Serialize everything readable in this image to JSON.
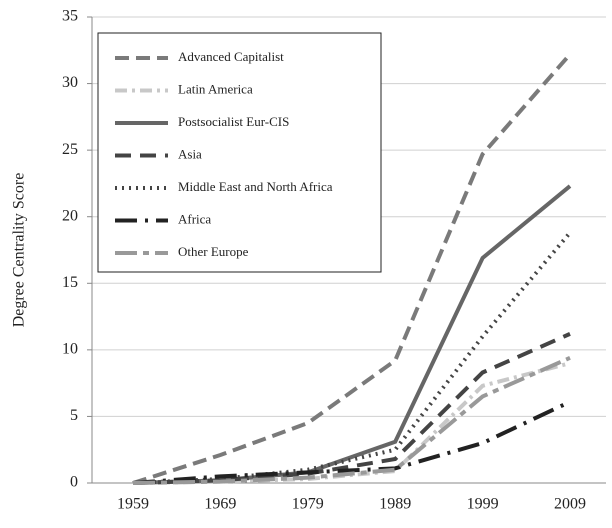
{
  "chart_data": {
    "type": "line",
    "y_label": "Degree Centrality Score",
    "categories": [
      "1959",
      "1969",
      "1979",
      "1989",
      "1999",
      "2009"
    ],
    "ylim": [
      0,
      35
    ],
    "yticks": [
      0,
      5,
      10,
      15,
      20,
      25,
      30,
      35
    ],
    "grid": true,
    "series": [
      {
        "name": "Advanced Capitalist",
        "color": "#7a7a7a",
        "dash": "14 7",
        "values": [
          0,
          2.1,
          4.5,
          9.2,
          24.7,
          32.2
        ]
      },
      {
        "name": "Latin America",
        "color": "#c8c8c8",
        "dash": "12 5 3 5",
        "values": [
          0,
          0.1,
          0.3,
          0.9,
          7.3,
          9.0
        ]
      },
      {
        "name": "Postsocialist Eur-CIS",
        "color": "#666666",
        "dash": "",
        "values": [
          0,
          0.2,
          0.8,
          3.1,
          16.9,
          22.3
        ]
      },
      {
        "name": "Asia",
        "color": "#444444",
        "dash": "16 9",
        "values": [
          0,
          0.2,
          0.7,
          1.8,
          8.3,
          11.2
        ]
      },
      {
        "name": "Middle East and North Africa",
        "color": "#444444",
        "dash": "2 5",
        "values": [
          0,
          0.3,
          1.0,
          2.5,
          11.0,
          18.8
        ]
      },
      {
        "name": "Africa",
        "color": "#222222",
        "dash": "22 8 3 8",
        "values": [
          0,
          0.5,
          0.8,
          1.1,
          3.0,
          6.1
        ]
      },
      {
        "name": "Other Europe",
        "color": "#999999",
        "dash": "22 6 6 6",
        "values": [
          0,
          0.1,
          0.4,
          1.0,
          6.5,
          9.4
        ]
      }
    ]
  }
}
